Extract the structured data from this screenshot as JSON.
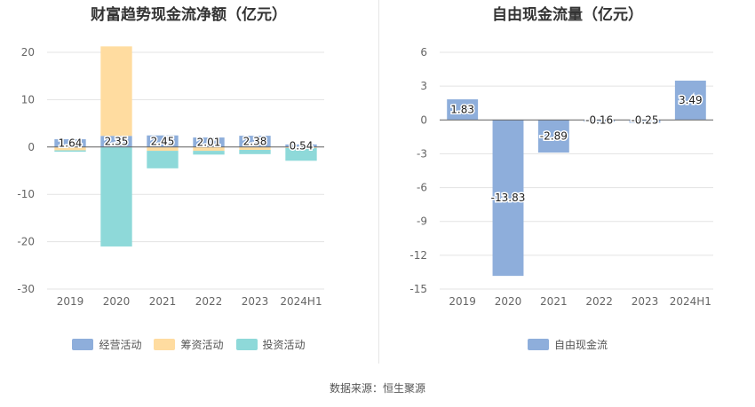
{
  "source_text": "数据来源：恒生聚源",
  "chart_data": [
    {
      "type": "bar",
      "stacked": true,
      "title": "财富趋势现金流净额（亿元）",
      "categories": [
        "2019",
        "2020",
        "2021",
        "2022",
        "2023",
        "2024H1"
      ],
      "ylim": [
        -30,
        20
      ],
      "yticks": [
        20,
        10,
        0,
        -10,
        -20,
        -30
      ],
      "grid": true,
      "legend_position": "bottom",
      "series": [
        {
          "name": "经营活动",
          "color": "#8eaedb",
          "values": [
            1.64,
            2.35,
            2.45,
            2.01,
            2.38,
            0.54
          ]
        },
        {
          "name": "筹资活动",
          "color": "#ffdca0",
          "values": [
            -0.7,
            18.9,
            -0.8,
            -0.8,
            -0.6,
            -0.2
          ]
        },
        {
          "name": "投资活动",
          "color": "#8ed9d9",
          "values": [
            -0.3,
            -21.0,
            -3.7,
            -0.8,
            -0.9,
            -2.7
          ]
        }
      ],
      "data_labels": [
        "1.64",
        "2.35",
        "2.45",
        "2.01",
        "2.38",
        "0.54"
      ]
    },
    {
      "type": "bar",
      "title": "自由现金流量（亿元）",
      "categories": [
        "2019",
        "2020",
        "2021",
        "2022",
        "2023",
        "2024H1"
      ],
      "ylim": [
        -15,
        6
      ],
      "yticks": [
        6,
        3,
        0,
        -3,
        -6,
        -9,
        -12,
        -15
      ],
      "grid": true,
      "legend_position": "bottom",
      "series": [
        {
          "name": "自由现金流",
          "color": "#8eaedb",
          "values": [
            1.83,
            -13.83,
            -2.89,
            -0.16,
            -0.25,
            3.49
          ]
        }
      ],
      "data_labels": [
        "1.83",
        "-13.83",
        "-2.89",
        "-0.16",
        "-0.25",
        "3.49"
      ]
    }
  ]
}
